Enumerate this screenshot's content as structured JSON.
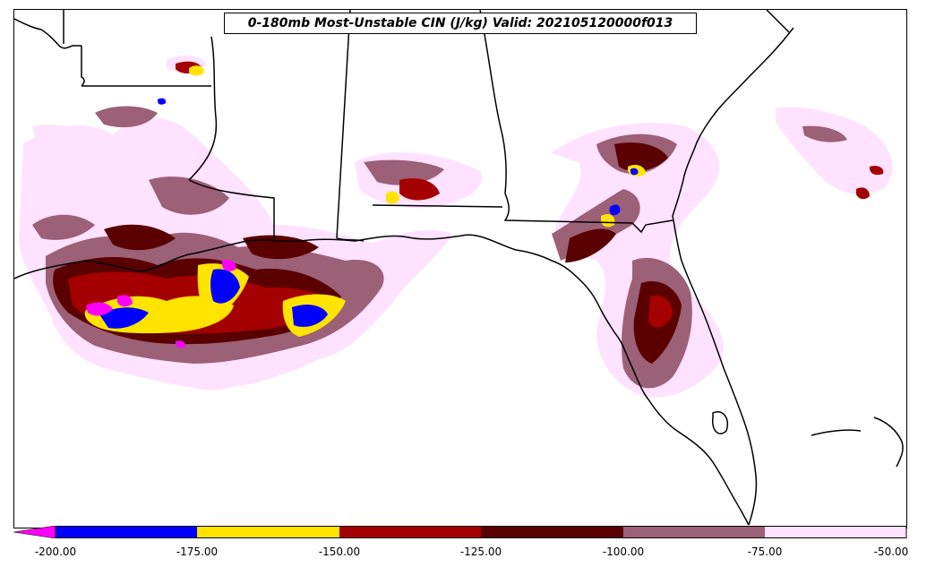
{
  "title": "0-180mb Most-Unstable CIN (J/kg) Valid: 202105120000f013",
  "colors": {
    "lt_-200": "#ff00ff",
    "-200_-175": "#0000ff",
    "-175_-150": "#ffe400",
    "-150_-125": "#a50000",
    "-125_-100": "#5a0000",
    "-100_-75": "#9c6077",
    "-75_-50": "#ffe2ff",
    "borders": "#000000"
  },
  "colorbar": {
    "ticks": [
      "-200.00",
      "-175.00",
      "-150.00",
      "-125.00",
      "-100.00",
      "-75.00",
      "-50.00"
    ],
    "extend": "min"
  }
}
